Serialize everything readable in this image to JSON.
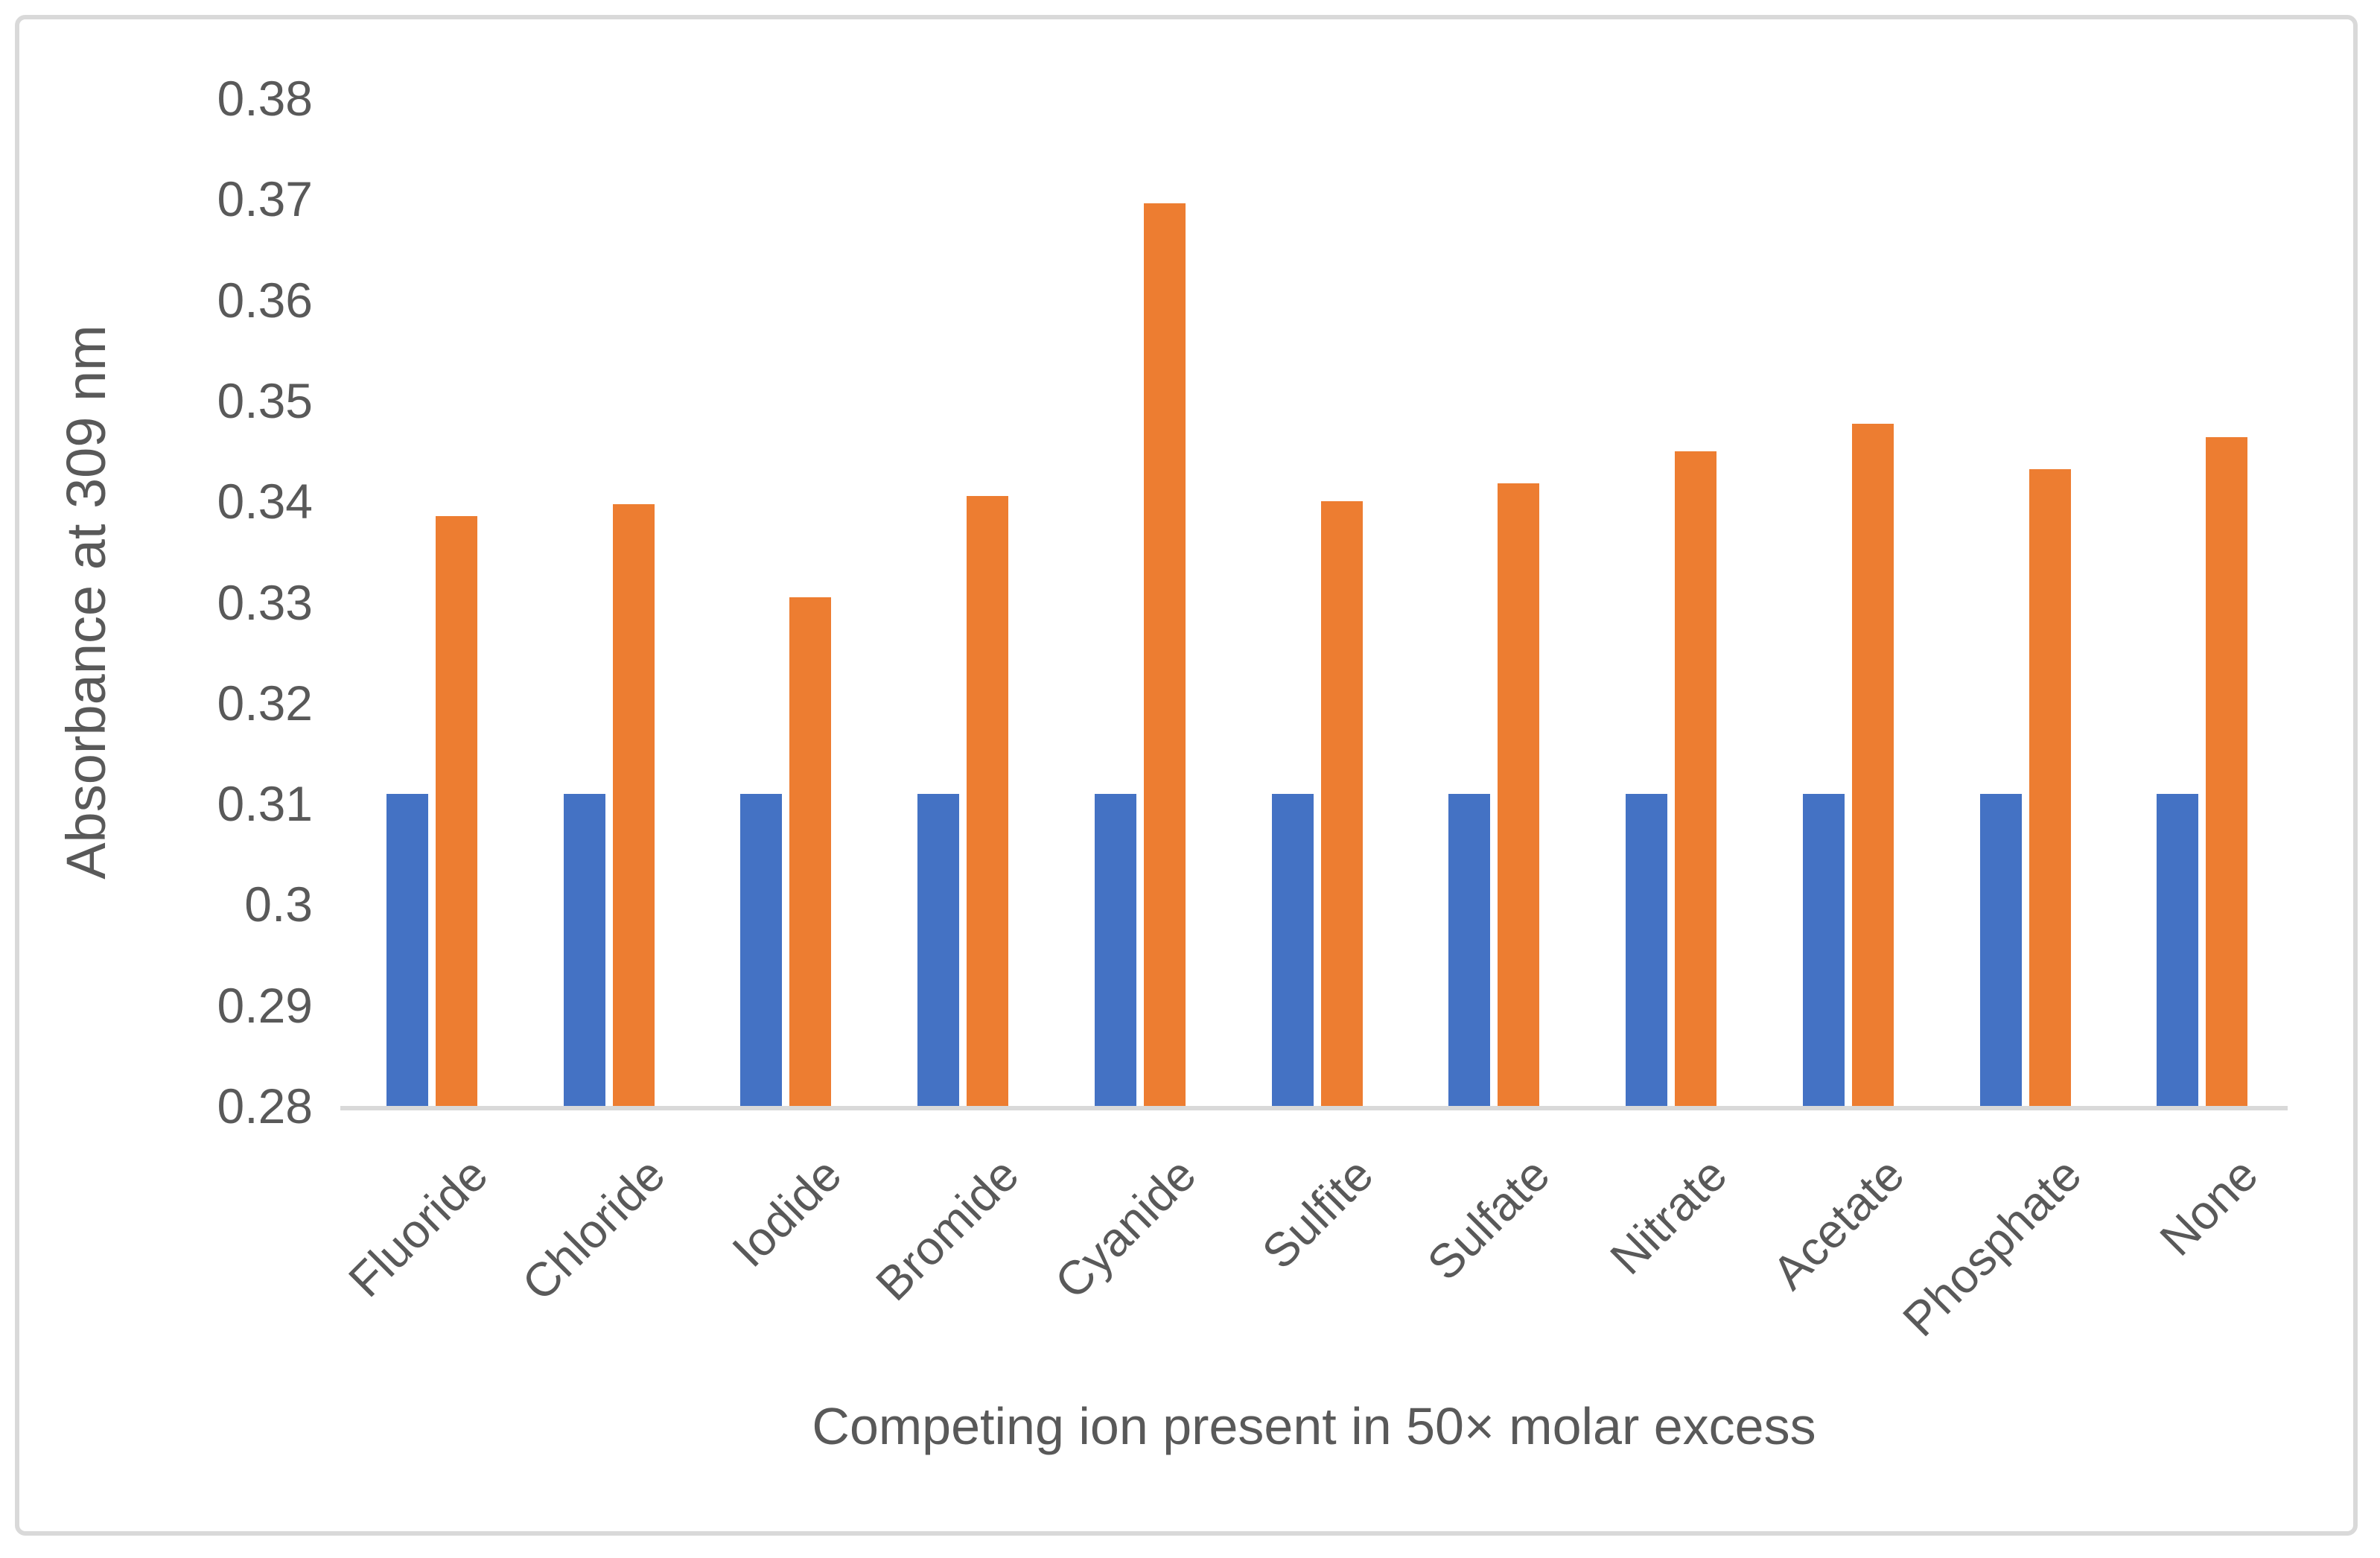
{
  "chart_data": {
    "type": "bar",
    "title": "",
    "xlabel": "Competing ion present in 50× molar excess",
    "ylabel": "Absorbance at 309 nm",
    "categories": [
      "Fluoride",
      "Chloride",
      "Iodide",
      "Bromide",
      "Cyanide",
      "Sulfite",
      "Sulfate",
      "Nitrate",
      "Acetate",
      "Phosphate",
      "None"
    ],
    "series": [
      {
        "name": "blue",
        "color": "#4472C4",
        "values": [
          0.311,
          0.311,
          0.311,
          0.311,
          0.311,
          0.311,
          0.311,
          0.311,
          0.311,
          0.311,
          0.311
        ]
      },
      {
        "name": "orange",
        "color": "#ED7D31",
        "values": [
          0.3385,
          0.3397,
          0.3305,
          0.3405,
          0.3696,
          0.34,
          0.3418,
          0.345,
          0.3477,
          0.3432,
          0.3464
        ]
      }
    ],
    "ylim": [
      0.28,
      0.38
    ],
    "ytick_step": 0.01,
    "ytick_labels": [
      "0.38",
      "0.37",
      "0.36",
      "0.35",
      "0.34",
      "0.33",
      "0.32",
      "0.31",
      "0.3",
      "0.29",
      "0.28"
    ],
    "grid": false,
    "legend": "none",
    "axis_line_color": "#D9D9D9",
    "text_color": "#595959",
    "border_color": "#D9D9D9"
  }
}
